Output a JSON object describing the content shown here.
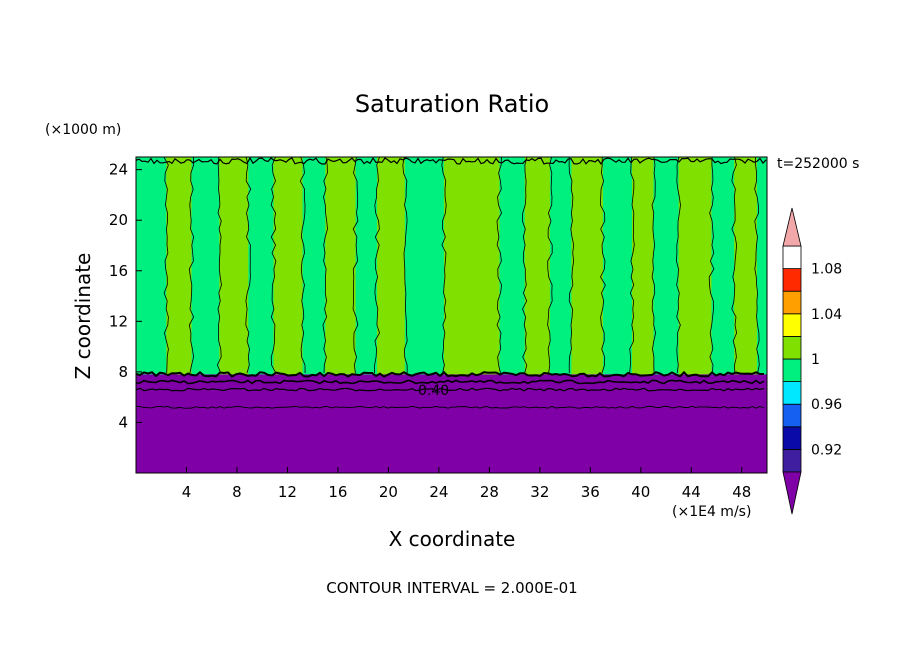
{
  "chart_data": {
    "type": "heatmap",
    "title": "Saturation Ratio",
    "xlabel": "X coordinate",
    "ylabel": "Z coordinate",
    "x_unit": "(×1E4 m/s)",
    "y_unit": "(×1000 m)",
    "time_label": "t=252000 s",
    "footer": "CONTOUR INTERVAL = 2.000E-01",
    "contour_label": "0.40",
    "xlim": [
      0,
      50
    ],
    "ylim": [
      0,
      25
    ],
    "x_ticks": [
      4,
      8,
      12,
      16,
      20,
      24,
      28,
      32,
      36,
      40,
      44,
      48
    ],
    "y_ticks": [
      4,
      8,
      12,
      16,
      20,
      24
    ],
    "colorbar": {
      "levels": [
        0.9,
        0.92,
        0.94,
        0.96,
        0.98,
        1.0,
        1.02,
        1.04,
        1.06,
        1.08,
        1.1
      ],
      "tick_labels": [
        "0.92",
        "0.96",
        "1",
        "1.04",
        "1.08"
      ],
      "tick_values": [
        0.92,
        0.96,
        1.0,
        1.04,
        1.08
      ],
      "under_color": "#7f00a6",
      "over_color": "#f2a8a8",
      "colors": [
        "#3f1fa0",
        "#0a0aa8",
        "#1560f0",
        "#00e8ff",
        "#00f080",
        "#80e000",
        "#ffff00",
        "#ff9f00",
        "#ff2a00",
        "#ffffff"
      ]
    },
    "layers": [
      {
        "name": "lower",
        "z_range": [
          0,
          7.8
        ],
        "value_range": "< 0.90",
        "color": "#7f00a6"
      },
      {
        "name": "upper",
        "z_range": [
          7.8,
          25
        ],
        "value_range": "0.98 – 1.02",
        "colors": [
          "#00f080",
          "#80e000"
        ]
      }
    ],
    "upper_bands": [
      {
        "x0": 0.0,
        "x1": 2.4,
        "v": 0.99
      },
      {
        "x0": 2.4,
        "x1": 4.4,
        "v": 1.01
      },
      {
        "x0": 4.4,
        "x1": 6.6,
        "v": 0.99
      },
      {
        "x0": 6.6,
        "x1": 8.9,
        "v": 1.01
      },
      {
        "x0": 8.9,
        "x1": 10.9,
        "v": 0.99
      },
      {
        "x0": 10.9,
        "x1": 13.2,
        "v": 1.01
      },
      {
        "x0": 13.2,
        "x1": 15.0,
        "v": 0.99
      },
      {
        "x0": 15.0,
        "x1": 17.4,
        "v": 1.01
      },
      {
        "x0": 17.4,
        "x1": 19.1,
        "v": 0.99
      },
      {
        "x0": 19.1,
        "x1": 21.3,
        "v": 1.01
      },
      {
        "x0": 21.3,
        "x1": 24.4,
        "v": 0.99
      },
      {
        "x0": 24.4,
        "x1": 28.8,
        "v": 1.01
      },
      {
        "x0": 28.8,
        "x1": 30.8,
        "v": 0.99
      },
      {
        "x0": 30.8,
        "x1": 32.8,
        "v": 1.01
      },
      {
        "x0": 32.8,
        "x1": 34.5,
        "v": 0.99
      },
      {
        "x0": 34.5,
        "x1": 37.0,
        "v": 1.01
      },
      {
        "x0": 37.0,
        "x1": 39.3,
        "v": 0.99
      },
      {
        "x0": 39.3,
        "x1": 41.0,
        "v": 1.01
      },
      {
        "x0": 41.0,
        "x1": 43.0,
        "v": 0.99
      },
      {
        "x0": 43.0,
        "x1": 45.6,
        "v": 1.01
      },
      {
        "x0": 45.6,
        "x1": 47.4,
        "v": 0.99
      },
      {
        "x0": 47.4,
        "x1": 49.2,
        "v": 1.01
      },
      {
        "x0": 49.2,
        "x1": 50.0,
        "v": 0.99
      }
    ]
  }
}
